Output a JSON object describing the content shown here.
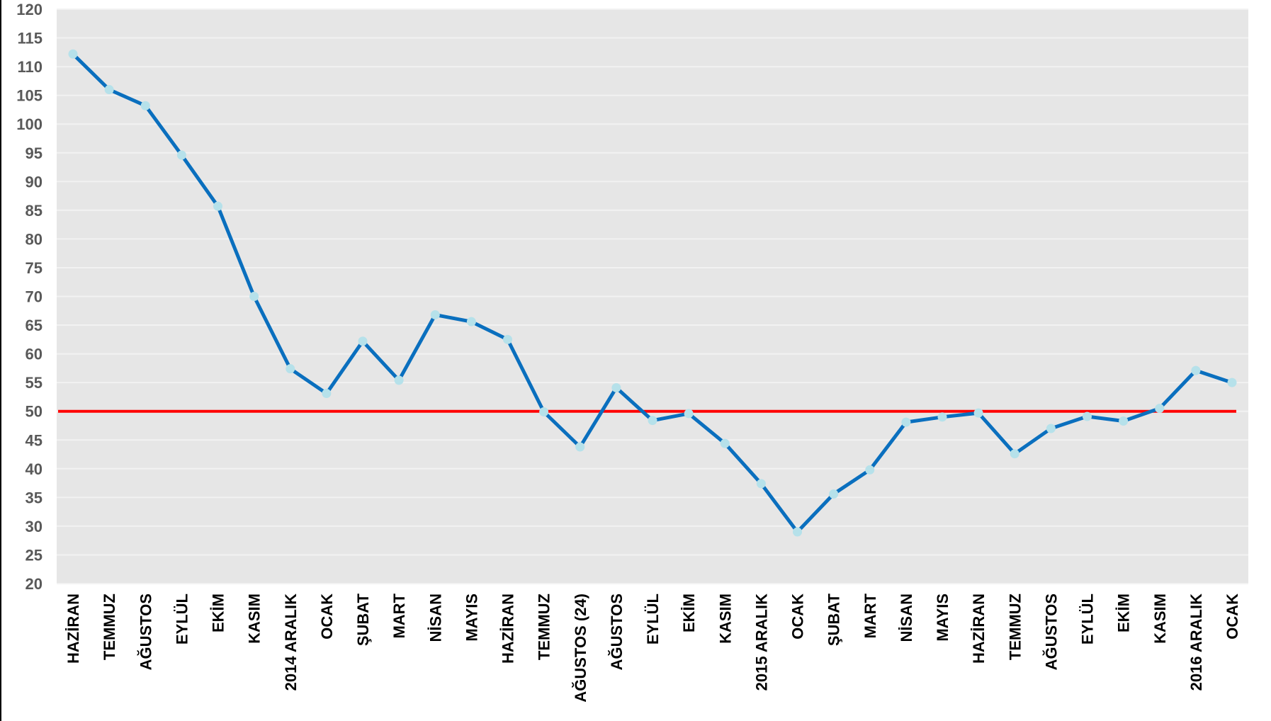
{
  "chart_data": {
    "type": "line",
    "title": "",
    "xlabel": "",
    "ylabel": "",
    "ylim": [
      20,
      120
    ],
    "y_tick_step": 5,
    "grid": true,
    "categories": [
      "HAZİRAN",
      "TEMMUZ",
      "AĞUSTOS",
      "EYLÜL",
      "EKİM",
      "KASIM",
      "2014 ARALIK",
      "OCAK",
      "ŞUBAT",
      "MART",
      "NİSAN",
      "MAYIS",
      "HAZİRAN",
      "TEMMUZ",
      "AĞUSTOS (24)",
      "AĞUSTOS",
      "EYLÜL",
      "EKİM",
      "KASIM",
      "2015 ARALIK",
      "OCAK",
      "ŞUBAT",
      "MART",
      "NİSAN",
      "MAYIS",
      "HAZİRAN",
      "TEMMUZ",
      "AĞUSTOS",
      "EYLÜL",
      "EKİM",
      "KASIM",
      "2016 ARALIK",
      "OCAK"
    ],
    "series": [
      {
        "values": [
          112.2,
          106,
          103.2,
          94.6,
          85.7,
          70,
          57.4,
          53.1,
          62.2,
          55.4,
          66.8,
          65.6,
          62.5,
          49.9,
          43.8,
          54.1,
          48.4,
          49.6,
          44.4,
          37.4,
          29,
          35.6,
          39.8,
          48.1,
          49,
          49.7,
          42.6,
          47,
          49.1,
          48.3,
          50.5,
          57.1,
          55
        ]
      }
    ],
    "reference_line": {
      "value": 50
    },
    "colors": {
      "plot_background": "#e6e6e6",
      "gridline": "#f2f2f2",
      "series_line": "#0a6fbe",
      "marker": "#b6e1ea",
      "reference_line": "#ff0000",
      "y_tick_text": "#595959",
      "x_tick_text": "#000000"
    }
  }
}
